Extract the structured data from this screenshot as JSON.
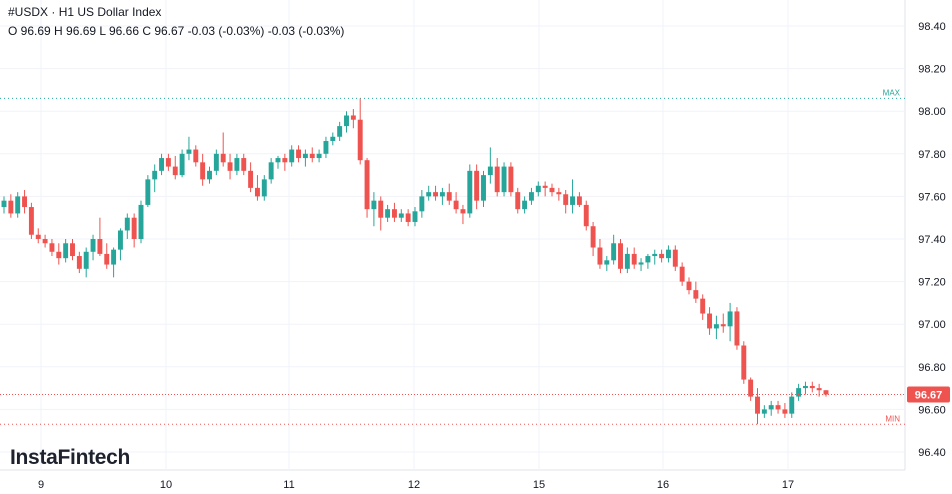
{
  "header": {
    "symbol": "#USDX",
    "separator": "·",
    "timeframe": "H1",
    "name": "US Dollar Index",
    "ohlc_line": "O 96.69 H 96.69 L 96.66 C 96.67 -0.03 (-0.03%) -0.03 (-0.03%)"
  },
  "branding": {
    "logo_text": "InstaFintech"
  },
  "colors": {
    "up": "#26a69a",
    "down": "#ef5350",
    "grid": "#f0f3fa",
    "max_line": "#26a69a",
    "min_line": "#ef5350",
    "last_price_bg": "#ef5350"
  },
  "chart_data": {
    "type": "candlestick",
    "yticks": [
      "98.40",
      "98.20",
      "98.00",
      "97.80",
      "97.60",
      "97.40",
      "97.20",
      "97.00",
      "96.80",
      "96.60",
      "96.40"
    ],
    "ylim": [
      96.33,
      98.5
    ],
    "xticks": [
      "9",
      "10",
      "11",
      "12",
      "15",
      "16",
      "17"
    ],
    "levels": {
      "max_label": "MAX",
      "max_value": 98.06,
      "min_label": "MIN",
      "min_value": 96.53,
      "last_value": 96.67,
      "last_label": "96.67"
    },
    "candles": [
      [
        97.55,
        97.6,
        97.52,
        97.58
      ],
      [
        97.58,
        97.61,
        97.5,
        97.52
      ],
      [
        97.52,
        97.62,
        97.5,
        97.6
      ],
      [
        97.6,
        97.63,
        97.52,
        97.55
      ],
      [
        97.55,
        97.57,
        97.4,
        97.42
      ],
      [
        97.42,
        97.45,
        97.38,
        97.4
      ],
      [
        97.4,
        97.42,
        97.36,
        97.38
      ],
      [
        97.38,
        97.4,
        97.32,
        97.34
      ],
      [
        97.34,
        97.38,
        97.28,
        97.31
      ],
      [
        97.31,
        97.4,
        97.29,
        97.38
      ],
      [
        97.38,
        97.4,
        97.3,
        97.32
      ],
      [
        97.32,
        97.34,
        97.24,
        97.26
      ],
      [
        97.26,
        97.36,
        97.22,
        97.34
      ],
      [
        97.34,
        97.42,
        97.3,
        97.4
      ],
      [
        97.4,
        97.5,
        97.32,
        97.33
      ],
      [
        97.33,
        97.38,
        97.26,
        97.28
      ],
      [
        97.28,
        97.36,
        97.22,
        97.35
      ],
      [
        97.35,
        97.45,
        97.3,
        97.44
      ],
      [
        97.44,
        97.52,
        97.4,
        97.5
      ],
      [
        97.5,
        97.52,
        97.36,
        97.4
      ],
      [
        97.4,
        97.58,
        97.38,
        97.56
      ],
      [
        97.56,
        97.7,
        97.55,
        97.68
      ],
      [
        97.68,
        97.75,
        97.62,
        97.72
      ],
      [
        97.72,
        97.8,
        97.7,
        97.78
      ],
      [
        97.78,
        97.8,
        97.72,
        97.74
      ],
      [
        97.74,
        97.79,
        97.68,
        97.7
      ],
      [
        97.7,
        97.82,
        97.69,
        97.8
      ],
      [
        97.8,
        97.88,
        97.77,
        97.82
      ],
      [
        97.82,
        97.84,
        97.74,
        97.76
      ],
      [
        97.76,
        97.8,
        97.65,
        97.68
      ],
      [
        97.68,
        97.74,
        97.66,
        97.72
      ],
      [
        97.72,
        97.82,
        97.7,
        97.8
      ],
      [
        97.8,
        97.9,
        97.74,
        97.76
      ],
      [
        97.76,
        97.8,
        97.68,
        97.72
      ],
      [
        97.72,
        97.8,
        97.7,
        97.78
      ],
      [
        97.78,
        97.8,
        97.7,
        97.72
      ],
      [
        97.72,
        97.76,
        97.62,
        97.64
      ],
      [
        97.64,
        97.7,
        97.58,
        97.6
      ],
      [
        97.6,
        97.7,
        97.58,
        97.68
      ],
      [
        97.68,
        97.78,
        97.66,
        97.76
      ],
      [
        97.76,
        97.79,
        97.73,
        97.78
      ],
      [
        97.78,
        97.8,
        97.72,
        97.76
      ],
      [
        97.76,
        97.84,
        97.74,
        97.82
      ],
      [
        97.82,
        97.84,
        97.76,
        97.78
      ],
      [
        97.78,
        97.82,
        97.74,
        97.8
      ],
      [
        97.8,
        97.83,
        97.76,
        97.78
      ],
      [
        97.78,
        97.82,
        97.76,
        97.8
      ],
      [
        97.8,
        97.88,
        97.78,
        97.86
      ],
      [
        97.86,
        97.9,
        97.84,
        97.88
      ],
      [
        97.88,
        97.95,
        97.86,
        97.93
      ],
      [
        97.93,
        98.0,
        97.9,
        97.98
      ],
      [
        97.98,
        98.01,
        97.92,
        97.96
      ],
      [
        97.96,
        98.06,
        97.75,
        97.77
      ],
      [
        97.77,
        97.78,
        97.5,
        97.54
      ],
      [
        97.54,
        97.62,
        97.46,
        97.58
      ],
      [
        97.58,
        97.6,
        97.44,
        97.5
      ],
      [
        97.5,
        97.56,
        97.48,
        97.54
      ],
      [
        97.54,
        97.57,
        97.48,
        97.5
      ],
      [
        97.5,
        97.54,
        97.48,
        97.52
      ],
      [
        97.52,
        97.54,
        97.46,
        97.48
      ],
      [
        97.48,
        97.55,
        97.46,
        97.53
      ],
      [
        97.53,
        97.63,
        97.5,
        97.6
      ],
      [
        97.6,
        97.65,
        97.58,
        97.62
      ],
      [
        97.62,
        97.65,
        97.58,
        97.6
      ],
      [
        97.6,
        97.64,
        97.56,
        97.62
      ],
      [
        97.62,
        97.66,
        97.56,
        97.58
      ],
      [
        97.58,
        97.62,
        97.52,
        97.54
      ],
      [
        97.54,
        97.56,
        97.47,
        97.52
      ],
      [
        97.52,
        97.75,
        97.5,
        97.72
      ],
      [
        97.72,
        97.75,
        97.54,
        97.58
      ],
      [
        97.58,
        97.72,
        97.55,
        97.7
      ],
      [
        97.7,
        97.83,
        97.66,
        97.74
      ],
      [
        97.74,
        97.78,
        97.6,
        97.62
      ],
      [
        97.62,
        97.76,
        97.6,
        97.74
      ],
      [
        97.74,
        97.76,
        97.6,
        97.62
      ],
      [
        97.62,
        97.64,
        97.52,
        97.54
      ],
      [
        97.54,
        97.6,
        97.52,
        97.58
      ],
      [
        97.58,
        97.64,
        97.56,
        97.62
      ],
      [
        97.62,
        97.67,
        97.6,
        97.65
      ],
      [
        97.65,
        97.67,
        97.6,
        97.64
      ],
      [
        97.64,
        97.66,
        97.6,
        97.62
      ],
      [
        97.62,
        97.64,
        97.58,
        97.61
      ],
      [
        97.61,
        97.63,
        97.52,
        97.56
      ],
      [
        97.56,
        97.68,
        97.52,
        97.6
      ],
      [
        97.6,
        97.62,
        97.55,
        97.56
      ],
      [
        97.56,
        97.58,
        97.44,
        97.46
      ],
      [
        97.46,
        97.48,
        97.32,
        97.36
      ],
      [
        97.36,
        97.4,
        97.26,
        97.28
      ],
      [
        97.28,
        97.32,
        97.25,
        97.3
      ],
      [
        97.3,
        97.42,
        97.28,
        97.38
      ],
      [
        97.38,
        97.4,
        97.24,
        97.26
      ],
      [
        97.26,
        97.36,
        97.24,
        97.33
      ],
      [
        97.33,
        97.36,
        97.26,
        97.28
      ],
      [
        97.28,
        97.31,
        97.25,
        97.29
      ],
      [
        97.29,
        97.33,
        97.26,
        97.32
      ],
      [
        97.32,
        97.35,
        97.28,
        97.33
      ],
      [
        97.33,
        97.35,
        97.29,
        97.31
      ],
      [
        97.31,
        97.37,
        97.29,
        97.35
      ],
      [
        97.35,
        97.37,
        97.25,
        97.27
      ],
      [
        97.27,
        97.29,
        97.18,
        97.2
      ],
      [
        97.2,
        97.22,
        97.14,
        97.16
      ],
      [
        97.16,
        97.2,
        97.1,
        97.12
      ],
      [
        97.12,
        97.14,
        97.02,
        97.05
      ],
      [
        97.05,
        97.08,
        96.95,
        96.98
      ],
      [
        96.98,
        97.04,
        96.93,
        97.0
      ],
      [
        97.0,
        97.05,
        96.96,
        96.99
      ],
      [
        96.99,
        97.1,
        96.92,
        97.06
      ],
      [
        97.06,
        97.08,
        96.88,
        96.9
      ],
      [
        96.9,
        96.92,
        96.72,
        96.74
      ],
      [
        96.74,
        96.75,
        96.64,
        96.66
      ],
      [
        96.66,
        96.7,
        96.53,
        96.58
      ],
      [
        96.58,
        96.62,
        96.56,
        96.6
      ],
      [
        96.6,
        96.64,
        96.57,
        96.62
      ],
      [
        96.62,
        96.64,
        96.58,
        96.6
      ],
      [
        96.6,
        96.63,
        96.56,
        96.58
      ],
      [
        96.58,
        96.68,
        96.56,
        96.66
      ],
      [
        96.66,
        96.72,
        96.64,
        96.7
      ],
      [
        96.7,
        96.73,
        96.67,
        96.71
      ],
      [
        96.71,
        96.73,
        96.68,
        96.7
      ],
      [
        96.7,
        96.72,
        96.66,
        96.69
      ],
      [
        96.69,
        96.69,
        96.66,
        96.67
      ]
    ]
  }
}
